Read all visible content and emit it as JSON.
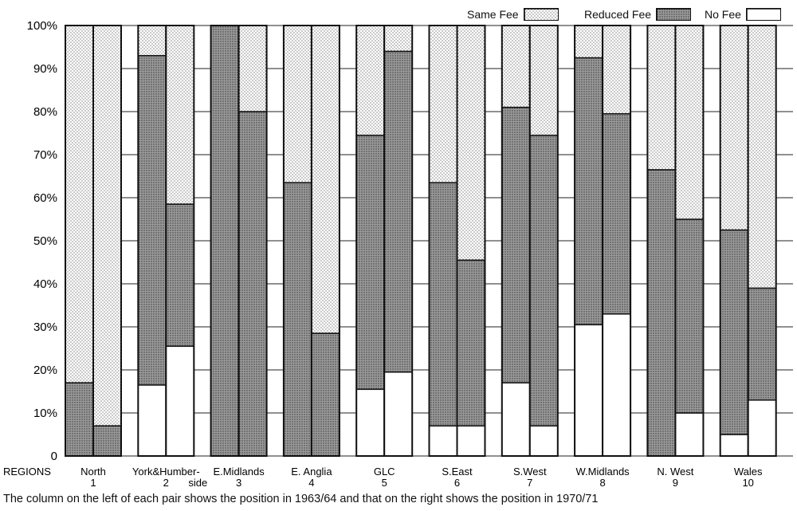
{
  "legend": {
    "same_fee": "Same Fee",
    "reduced_fee": "Reduced Fee",
    "no_fee": "No Fee"
  },
  "caption": {
    "text": "The column on the left of each pair shows the position in 1963/64 and that on the right shows the position in",
    "year": "1970/71"
  },
  "colors": {
    "same_fee": "#e6e6e6",
    "reduced_fee": "#8c8c8c",
    "no_fee": "#ffffff",
    "outline": "#111111"
  },
  "chart_data": {
    "type": "bar",
    "stacked": true,
    "x_label": "REGIONS",
    "y_ticks": [
      "0",
      "10%",
      "20%",
      "30%",
      "40%",
      "50%",
      "60%",
      "70%",
      "80%",
      "90%",
      "100%"
    ],
    "ylim": [
      0,
      100
    ],
    "grid": true,
    "legend_position": "top-right",
    "periods": [
      "1963/64",
      "1970/71"
    ],
    "categories": [
      {
        "name": "North",
        "number": "1"
      },
      {
        "name": "York&Humber-",
        "name2": "side",
        "number": "2"
      },
      {
        "name": "E.Midlands",
        "number": "3"
      },
      {
        "name": "E. Anglia",
        "number": "4"
      },
      {
        "name": "GLC",
        "number": "5"
      },
      {
        "name": "S.East",
        "number": "6"
      },
      {
        "name": "S.West",
        "number": "7"
      },
      {
        "name": "W.Midlands",
        "number": "8"
      },
      {
        "name": "N. West",
        "number": "9"
      },
      {
        "name": "Wales",
        "number": "10"
      }
    ],
    "series": [
      {
        "name": "No Fee",
        "values_1963_64": [
          0,
          16.5,
          0,
          0,
          15.5,
          7,
          17,
          30.5,
          0,
          5
        ],
        "values_1970_71": [
          0,
          25.5,
          0,
          0,
          19.5,
          7,
          7,
          33,
          10,
          13
        ]
      },
      {
        "name": "Reduced Fee",
        "values_1963_64": [
          17,
          76.5,
          100,
          63.5,
          59,
          56.5,
          64,
          62,
          66.5,
          47.5
        ],
        "values_1970_71": [
          7,
          33,
          80,
          28.5,
          74.5,
          38.5,
          67.5,
          46.5,
          45,
          26
        ]
      },
      {
        "name": "Same Fee",
        "values_1963_64": [
          83,
          7,
          0,
          36.5,
          25.5,
          36.5,
          19,
          7.5,
          33.5,
          47.5
        ],
        "values_1970_71": [
          93,
          41.5,
          20,
          71.5,
          6,
          54.5,
          25.5,
          20.5,
          45,
          61
        ]
      }
    ]
  }
}
